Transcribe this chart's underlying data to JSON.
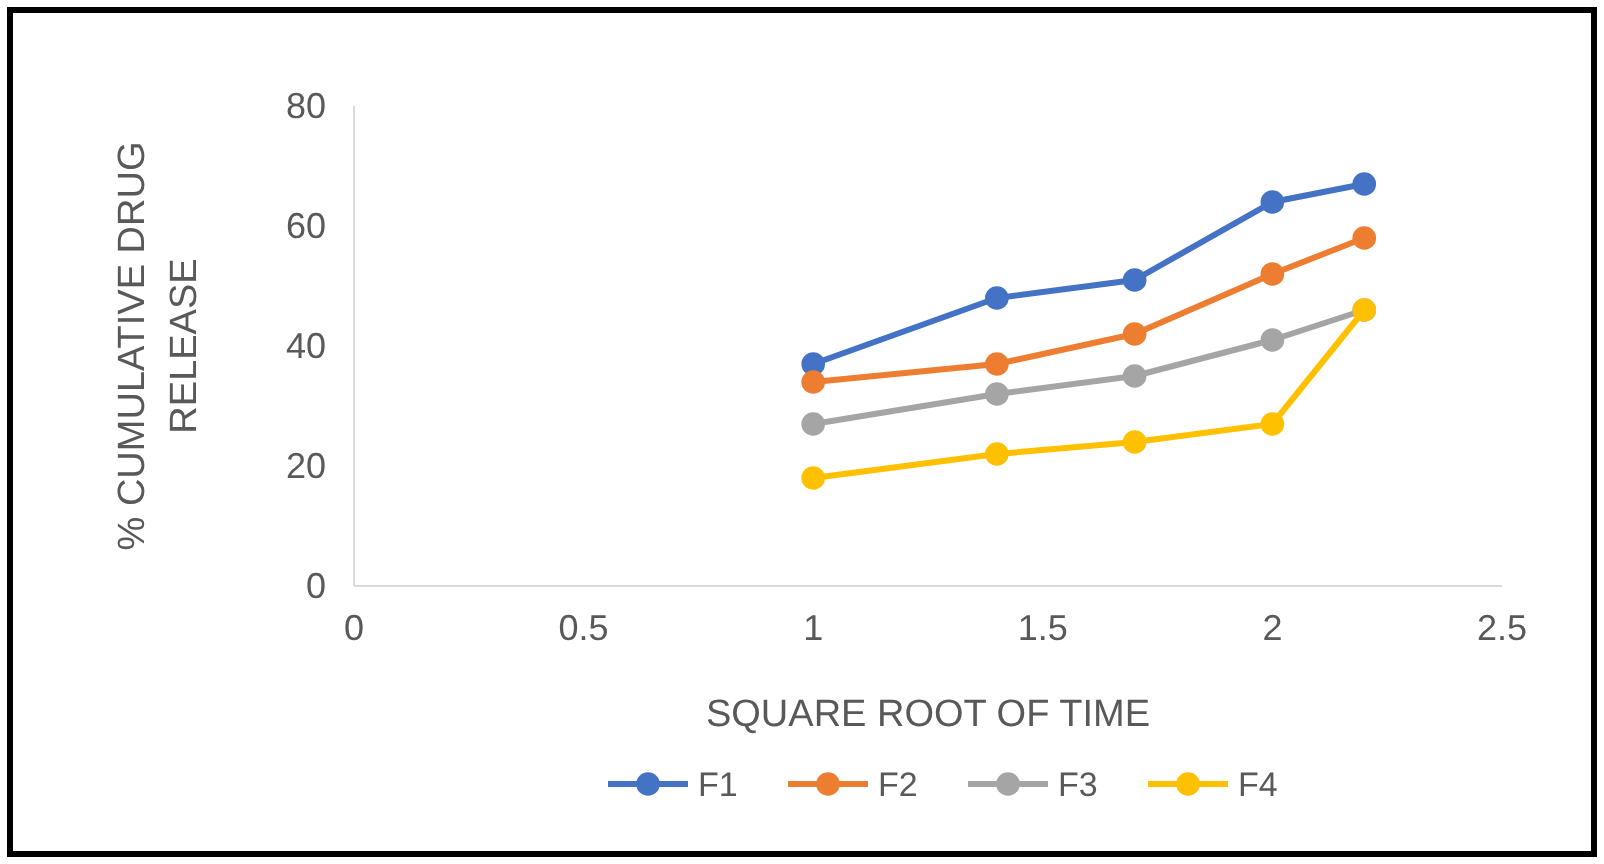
{
  "chart_data": {
    "type": "line",
    "xlabel": "SQUARE ROOT OF TIME",
    "ylabel": "% CUMULATIVE DRUG RELEASE",
    "x": [
      1,
      1.4,
      1.7,
      2,
      2.2
    ],
    "series": [
      {
        "name": "F1",
        "color": "#4472c4",
        "values": [
          37,
          48,
          51,
          64,
          67
        ]
      },
      {
        "name": "F2",
        "color": "#ed7d31",
        "values": [
          34,
          37,
          42,
          52,
          58
        ]
      },
      {
        "name": "F3",
        "color": "#a5a5a5",
        "values": [
          27,
          32,
          35,
          41,
          46
        ]
      },
      {
        "name": "F4",
        "color": "#ffc000",
        "values": [
          18,
          22,
          24,
          27,
          46
        ]
      }
    ],
    "xlim": [
      0,
      2.5
    ],
    "xticks": [
      0,
      0.5,
      1,
      1.5,
      2,
      2.5
    ],
    "ylim": [
      0,
      80
    ],
    "yticks": [
      0,
      20,
      40,
      60,
      80
    ],
    "grid": false,
    "legend": "bottom",
    "marker": "circle",
    "line_style": "solid"
  }
}
